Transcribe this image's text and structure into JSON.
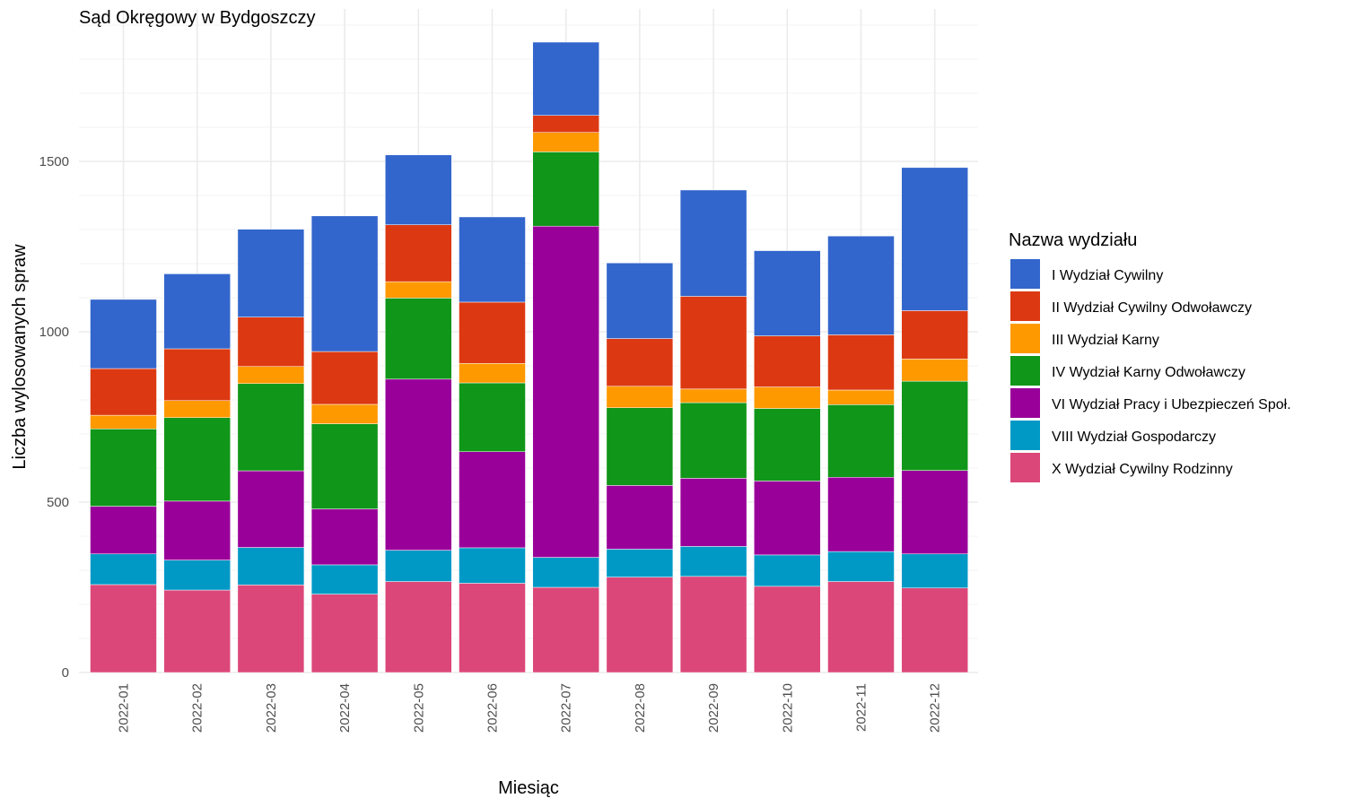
{
  "chart_data": {
    "type": "bar",
    "stacked": true,
    "title": "Sąd Okręgowy w Bydgoszczy",
    "xlabel": "Miesiąc",
    "ylabel": "Liczba wylosowanych spraw",
    "ylim": [
      0,
      1900
    ],
    "yticks": [
      0,
      500,
      1000,
      1500
    ],
    "grid": true,
    "legend_position": "right",
    "legend_title": "Nazwa wydziału",
    "categories": [
      "2022-01",
      "2022-02",
      "2022-03",
      "2022-04",
      "2022-05",
      "2022-06",
      "2022-07",
      "2022-08",
      "2022-09",
      "2022-10",
      "2022-11",
      "2022-12"
    ],
    "series": [
      {
        "name": "X Wydział Cywilny Rodzinny",
        "color": "#dc477a",
        "values": [
          258,
          242,
          257,
          230,
          267,
          262,
          250,
          280,
          282,
          253,
          267,
          248
        ]
      },
      {
        "name": "VIII Wydział Gospodarczy",
        "color": "#0099c6",
        "values": [
          90,
          88,
          110,
          86,
          92,
          104,
          88,
          82,
          88,
          92,
          88,
          100
        ]
      },
      {
        "name": "VI Wydział Pracy i Ubezpieczeń Społ.",
        "color": "#990099",
        "values": [
          140,
          173,
          225,
          164,
          502,
          282,
          972,
          187,
          200,
          217,
          218,
          245
        ]
      },
      {
        "name": "IV Wydział Karny Odwoławczy",
        "color": "#109618",
        "values": [
          227,
          245,
          256,
          250,
          238,
          202,
          218,
          228,
          222,
          213,
          213,
          262
        ]
      },
      {
        "name": "III Wydział Karny",
        "color": "#ff9900",
        "values": [
          40,
          50,
          50,
          57,
          48,
          57,
          57,
          63,
          40,
          63,
          43,
          65
        ]
      },
      {
        "name": "II Wydział Cywilny Odwoławczy",
        "color": "#dc3912",
        "values": [
          137,
          152,
          145,
          155,
          167,
          180,
          50,
          140,
          272,
          150,
          162,
          142
        ]
      },
      {
        "name": "I Wydział Cywilny",
        "color": "#3366cc",
        "values": [
          203,
          220,
          258,
          398,
          205,
          250,
          215,
          222,
          312,
          250,
          290,
          420
        ]
      }
    ],
    "legend_order": [
      "I Wydział Cywilny",
      "II Wydział Cywilny Odwoławczy",
      "III Wydział Karny",
      "IV Wydział Karny Odwoławczy",
      "VI Wydział Pracy i Ubezpieczeń Społ.",
      "VIII Wydział Gospodarczy",
      "X Wydział Cywilny Rodzinny"
    ]
  }
}
